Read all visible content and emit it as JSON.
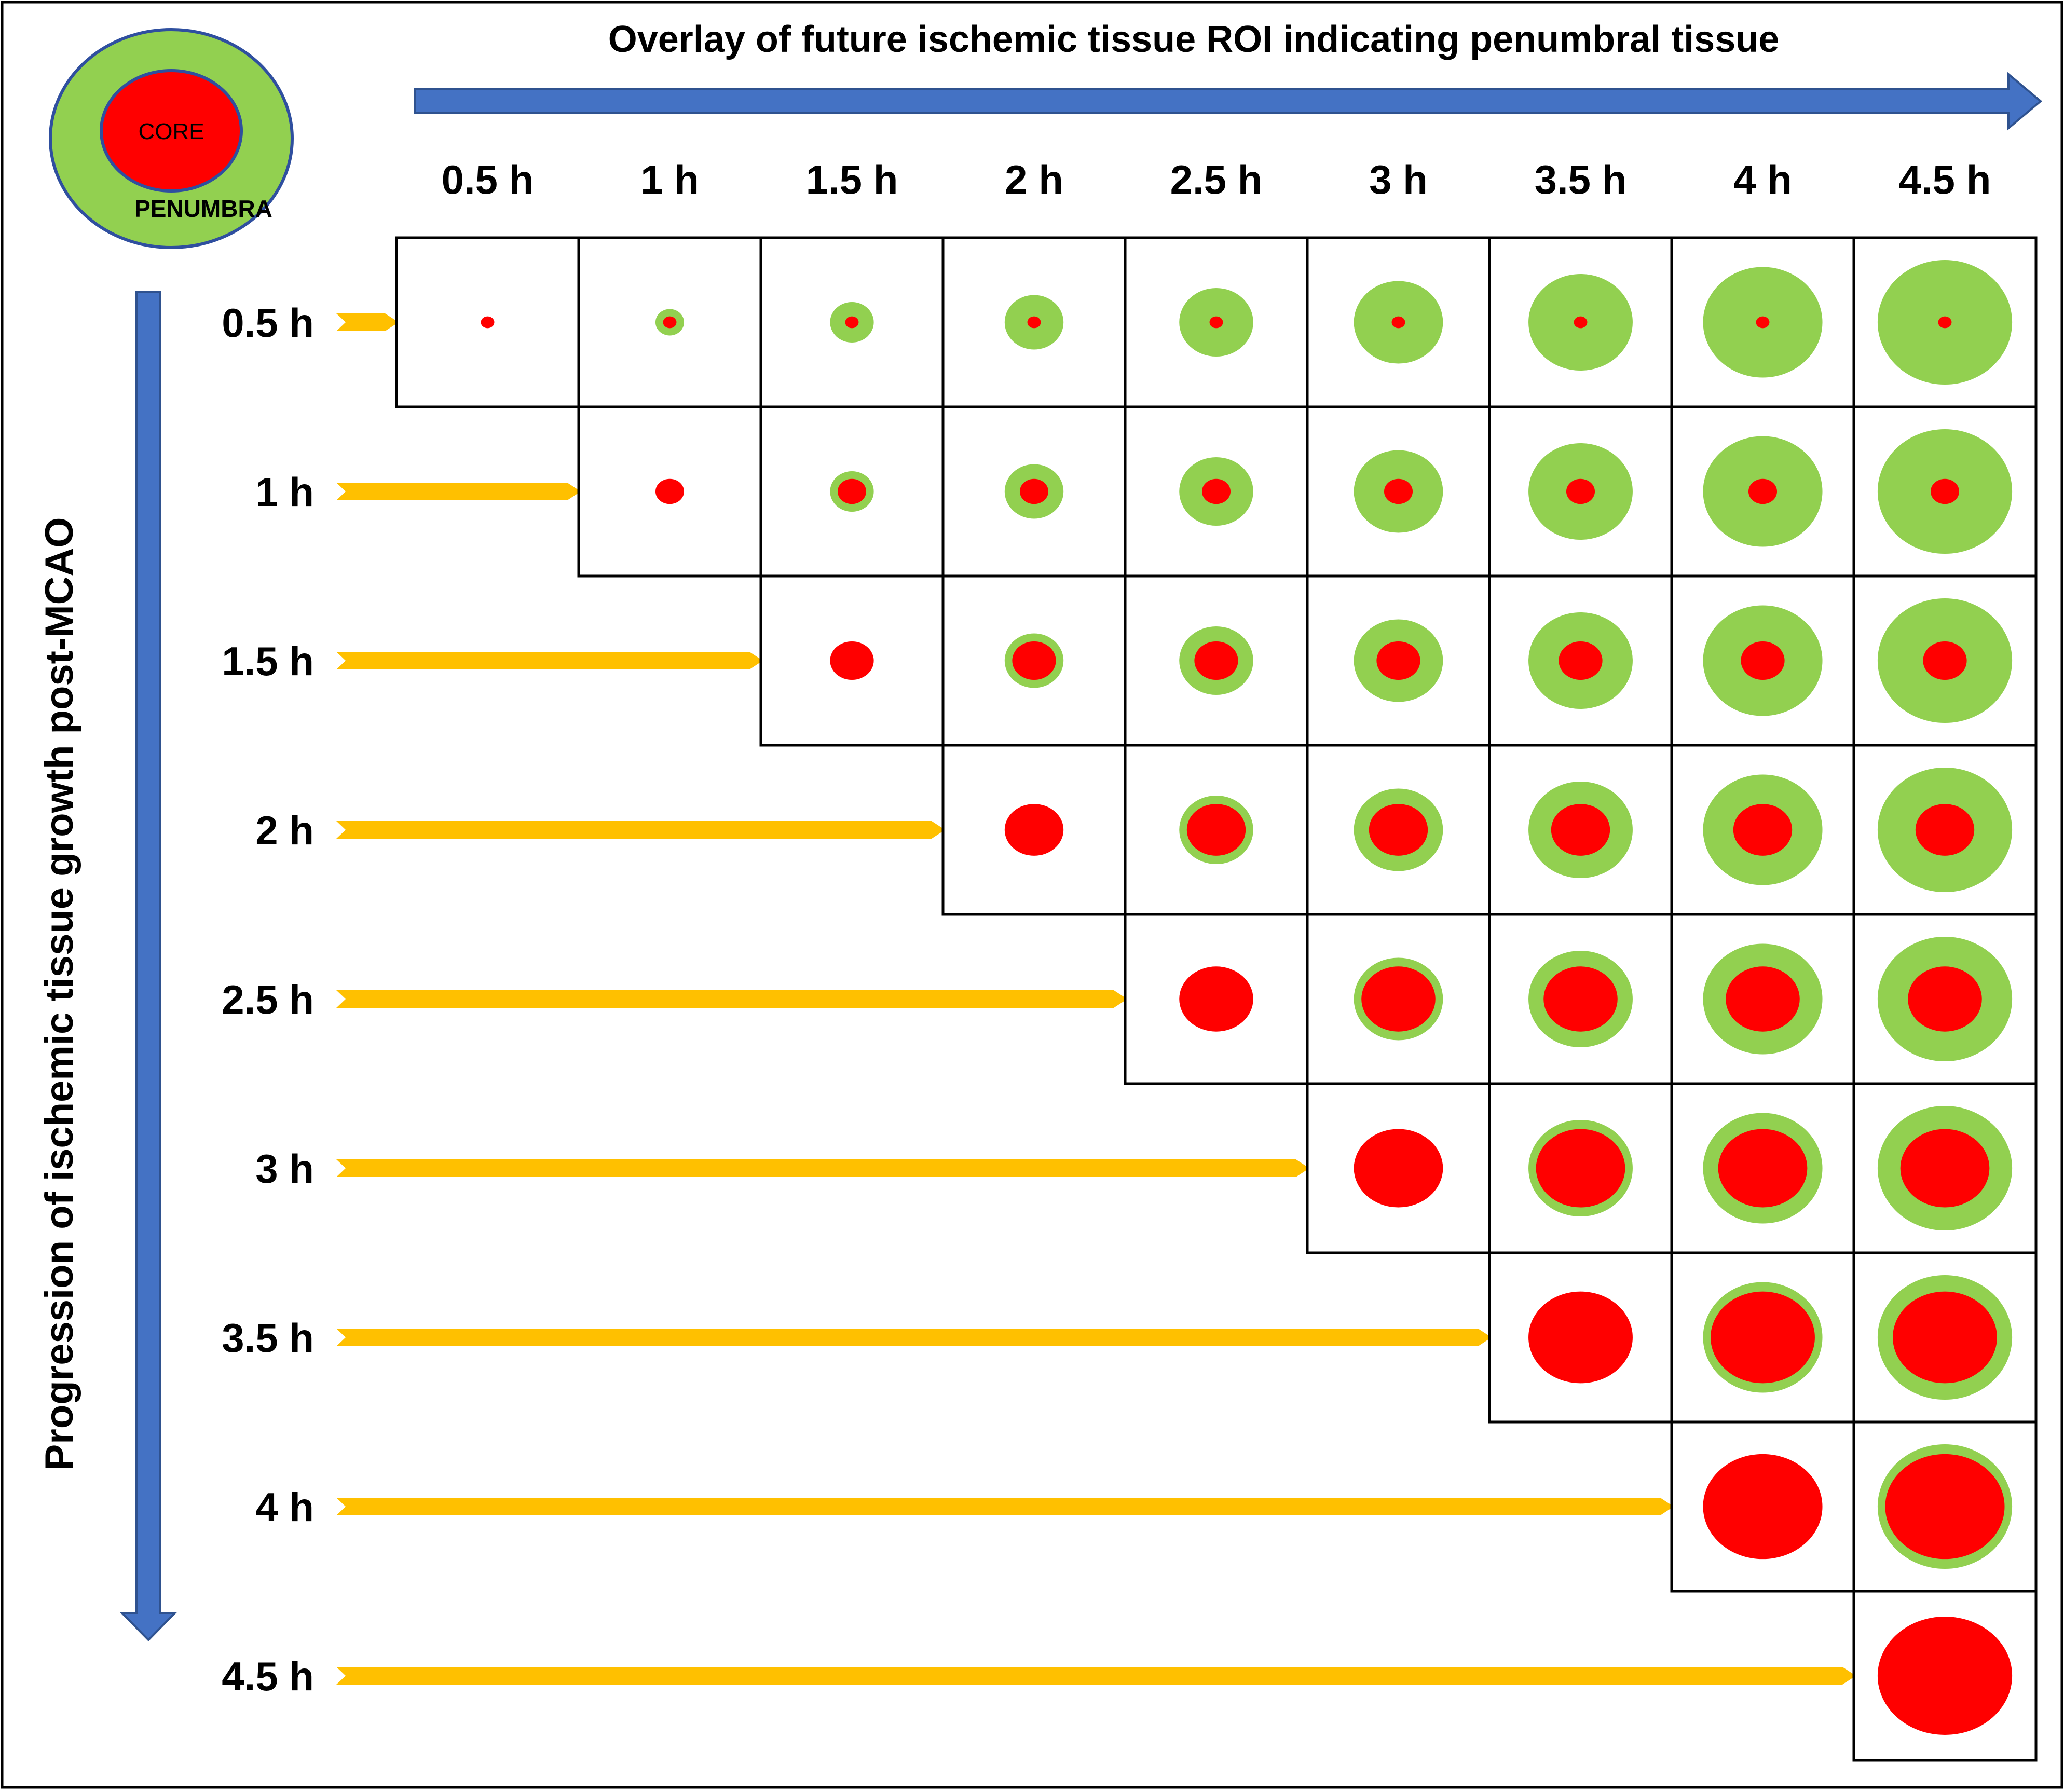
{
  "title": "Overlay of future ischemic tissue ROI indicating penumbral tissue",
  "vertical_label": "Progression of ischemic tissue growth post-MCAO",
  "legend": {
    "core": "CORE",
    "penumbra": "PENUMBRA"
  },
  "columns": [
    "0.5 h",
    "1 h",
    "1.5 h",
    "2 h",
    "2.5 h",
    "3 h",
    "3.5 h",
    "4 h",
    "4.5 h"
  ],
  "rows": [
    "0.5 h",
    "1 h",
    "1.5 h",
    "2 h",
    "2.5 h",
    "3 h",
    "3.5 h",
    "4 h",
    "4.5 h"
  ],
  "colors": {
    "core": "#ff0000",
    "penumbra": "#92d050",
    "arrow_blue": "#4472c4",
    "arrow_yellow": "#ffc000",
    "line": "#000000"
  }
}
